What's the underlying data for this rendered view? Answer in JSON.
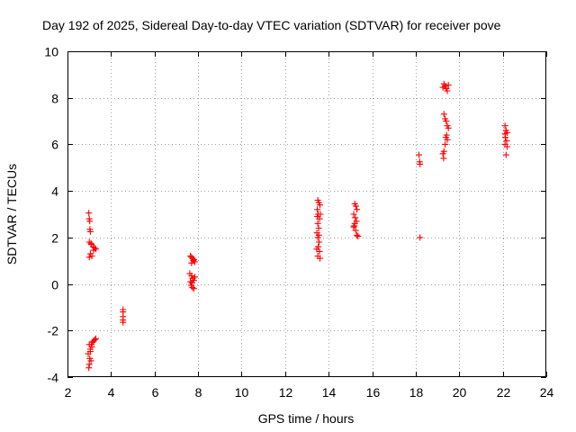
{
  "chart_data": {
    "type": "scatter",
    "title": "Day 192 of 2025, Sidereal Day-to-day VTEC variation (SDTVAR) for receiver pove",
    "xlabel": "GPS time / hours",
    "ylabel": "SDTVAR / TECUs",
    "xlim": [
      2,
      24
    ],
    "ylim": [
      -4,
      10
    ],
    "xticks": [
      2,
      4,
      6,
      8,
      10,
      12,
      14,
      16,
      18,
      20,
      22,
      24
    ],
    "yticks": [
      -4,
      -2,
      0,
      2,
      4,
      6,
      8,
      10
    ],
    "xtick_labels": [
      "2",
      "4",
      "6",
      "8",
      "10",
      "12",
      "14",
      "16",
      "18",
      "20",
      "22",
      "24"
    ],
    "ytick_labels": [
      "-4",
      "-2",
      "0",
      "2",
      "4",
      "6",
      "8",
      "10"
    ],
    "grid": true,
    "marker": "+",
    "color": "#ff0000",
    "series": [
      {
        "name": "SDTVAR",
        "points": [
          [
            2.98,
            3.05
          ],
          [
            3.0,
            2.8
          ],
          [
            3.02,
            2.7
          ],
          [
            3.03,
            2.35
          ],
          [
            3.05,
            2.25
          ],
          [
            3.0,
            1.8
          ],
          [
            3.08,
            1.75
          ],
          [
            3.1,
            1.7
          ],
          [
            3.05,
            1.3
          ],
          [
            3.0,
            1.15
          ],
          [
            3.12,
            1.2
          ],
          [
            3.18,
            1.6
          ],
          [
            3.25,
            1.55
          ],
          [
            3.3,
            1.5
          ],
          [
            3.2,
            1.45
          ],
          [
            3.0,
            -2.6
          ],
          [
            3.05,
            -2.8
          ],
          [
            2.95,
            -3.0
          ],
          [
            3.02,
            -3.2
          ],
          [
            3.08,
            -3.3
          ],
          [
            3.0,
            -3.45
          ],
          [
            2.98,
            -3.6
          ],
          [
            3.1,
            -2.6
          ],
          [
            3.15,
            -2.5
          ],
          [
            3.2,
            -2.45
          ],
          [
            3.25,
            -2.4
          ],
          [
            3.3,
            -2.35
          ],
          [
            3.12,
            -2.7
          ],
          [
            3.05,
            -2.9
          ],
          [
            4.55,
            -1.1
          ],
          [
            4.55,
            -1.2
          ],
          [
            4.55,
            -1.4
          ],
          [
            4.55,
            -1.55
          ],
          [
            4.55,
            -1.65
          ],
          [
            7.65,
            1.2
          ],
          [
            7.7,
            1.15
          ],
          [
            7.75,
            1.1
          ],
          [
            7.8,
            1.05
          ],
          [
            7.85,
            0.95
          ],
          [
            7.7,
            0.9
          ],
          [
            7.78,
            1.0
          ],
          [
            7.62,
            0.45
          ],
          [
            7.7,
            0.35
          ],
          [
            7.75,
            0.25
          ],
          [
            7.8,
            0.15
          ],
          [
            7.72,
            0.05
          ],
          [
            7.68,
            -0.05
          ],
          [
            7.74,
            -0.15
          ],
          [
            7.8,
            -0.2
          ],
          [
            7.85,
            0.3
          ],
          [
            7.65,
            0.1
          ],
          [
            13.5,
            3.6
          ],
          [
            13.55,
            3.5
          ],
          [
            13.6,
            3.4
          ],
          [
            13.48,
            3.2
          ],
          [
            13.52,
            3.0
          ],
          [
            13.58,
            2.8
          ],
          [
            13.5,
            2.6
          ],
          [
            13.54,
            2.4
          ],
          [
            13.46,
            2.2
          ],
          [
            13.5,
            2.0
          ],
          [
            13.56,
            1.8
          ],
          [
            13.52,
            1.6
          ],
          [
            13.58,
            1.4
          ],
          [
            13.5,
            1.2
          ],
          [
            13.6,
            1.1
          ],
          [
            13.45,
            1.5
          ],
          [
            13.62,
            3.0
          ],
          [
            13.48,
            2.9
          ],
          [
            13.55,
            2.1
          ],
          [
            15.2,
            3.45
          ],
          [
            15.25,
            3.35
          ],
          [
            15.3,
            3.2
          ],
          [
            15.15,
            3.0
          ],
          [
            15.22,
            2.85
          ],
          [
            15.28,
            2.7
          ],
          [
            15.18,
            2.5
          ],
          [
            15.24,
            2.3
          ],
          [
            15.3,
            2.1
          ],
          [
            15.35,
            2.05
          ],
          [
            15.2,
            2.6
          ],
          [
            15.15,
            2.45
          ],
          [
            18.15,
            5.55
          ],
          [
            18.18,
            5.25
          ],
          [
            18.2,
            5.15
          ],
          [
            18.2,
            2.0
          ],
          [
            19.3,
            8.6
          ],
          [
            19.35,
            8.5
          ],
          [
            19.4,
            8.4
          ],
          [
            19.45,
            8.3
          ],
          [
            19.5,
            8.55
          ],
          [
            19.25,
            8.45
          ],
          [
            19.3,
            7.3
          ],
          [
            19.35,
            7.1
          ],
          [
            19.4,
            7.0
          ],
          [
            19.45,
            6.8
          ],
          [
            19.5,
            6.7
          ],
          [
            19.42,
            6.4
          ],
          [
            19.38,
            6.3
          ],
          [
            19.45,
            6.2
          ],
          [
            19.3,
            5.7
          ],
          [
            19.25,
            5.6
          ],
          [
            19.28,
            5.4
          ],
          [
            19.35,
            6.0
          ],
          [
            22.1,
            6.8
          ],
          [
            22.15,
            6.6
          ],
          [
            22.2,
            6.5
          ],
          [
            22.12,
            6.3
          ],
          [
            22.18,
            6.15
          ],
          [
            22.1,
            6.0
          ],
          [
            22.2,
            5.9
          ],
          [
            22.15,
            5.55
          ],
          [
            22.1,
            6.45
          ]
        ]
      }
    ]
  }
}
